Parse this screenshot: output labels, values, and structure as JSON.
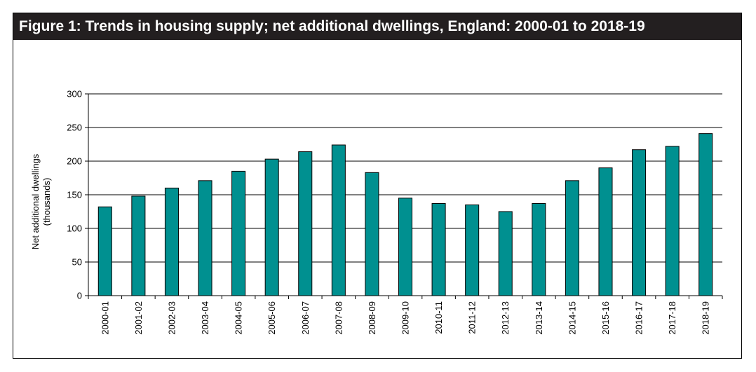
{
  "figure": {
    "title": "Figure 1: Trends in housing supply; net additional dwellings, England: 2000-01 to 2018-19"
  },
  "chart_data": {
    "type": "bar",
    "title": "Figure 1: Trends in housing supply; net additional dwellings, England: 2000-01 to 2018-19",
    "xlabel": "",
    "ylabel": "Net additional dwellings (thousands)",
    "ylabel_lines": [
      "Net additional dwellings",
      "(thousands)"
    ],
    "categories": [
      "2000-01",
      "2001-02",
      "2002-03",
      "2003-04",
      "2004-05",
      "2005-06",
      "2006-07",
      "2007-08",
      "2008-09",
      "2009-10",
      "2010-11",
      "2011-12",
      "2012-13",
      "2013-14",
      "2014-15",
      "2015-16",
      "2016-17",
      "2017-18",
      "2018-19"
    ],
    "values": [
      132,
      148,
      160,
      171,
      185,
      203,
      214,
      224,
      183,
      145,
      137,
      135,
      125,
      137,
      171,
      190,
      217,
      222,
      241
    ],
    "ylim": [
      0,
      300
    ],
    "yticks": [
      0,
      50,
      100,
      150,
      200,
      250,
      300
    ],
    "grid": true,
    "legend": "none",
    "bar_color": "#009090",
    "bar_edge_color": "#000000"
  }
}
